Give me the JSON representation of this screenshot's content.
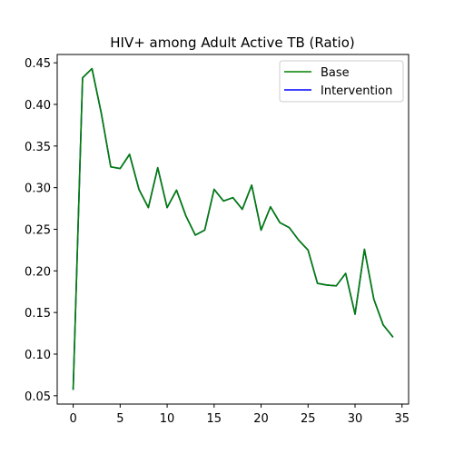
{
  "chart_data": {
    "type": "line",
    "title": "HIV+ among Adult Active TB (Ratio)",
    "xlabel": "",
    "ylabel": "",
    "xlim": [
      -1.7,
      35.7
    ],
    "ylim": [
      0.04,
      0.46
    ],
    "xticks": [
      0,
      5,
      10,
      15,
      20,
      25,
      30,
      35
    ],
    "yticks": [
      0.05,
      0.1,
      0.15,
      0.2,
      0.25,
      0.3,
      0.35,
      0.4,
      0.45
    ],
    "ytick_labels": [
      "0.05",
      "0.10",
      "0.15",
      "0.20",
      "0.25",
      "0.30",
      "0.35",
      "0.40",
      "0.45"
    ],
    "grid": false,
    "legend_position": "top-right",
    "x": [
      0,
      1,
      2,
      3,
      4,
      5,
      6,
      7,
      8,
      9,
      10,
      11,
      12,
      13,
      14,
      15,
      16,
      17,
      18,
      19,
      20,
      21,
      22,
      23,
      24,
      25,
      26,
      27,
      28,
      29,
      30,
      31,
      32,
      33,
      34
    ],
    "series": [
      {
        "name": "Base",
        "color": "#008000",
        "values": [
          0.058,
          0.432,
          0.443,
          0.389,
          0.325,
          0.323,
          0.34,
          0.298,
          0.276,
          0.324,
          0.276,
          0.297,
          0.266,
          0.243,
          0.249,
          0.298,
          0.284,
          0.288,
          0.274,
          0.303,
          0.249,
          0.277,
          0.258,
          0.252,
          0.237,
          0.225,
          0.185,
          0.183,
          0.182,
          0.197,
          0.148,
          0.226,
          0.166,
          0.135,
          0.121
        ]
      },
      {
        "name": "Intervention",
        "color": "#0000ff",
        "values": [
          0.058,
          0.432,
          0.443,
          0.389,
          0.325,
          0.323,
          0.34,
          0.298,
          0.276,
          0.324,
          0.276,
          0.297,
          0.266,
          0.243,
          0.249,
          0.298,
          0.284,
          0.288,
          0.274,
          0.303,
          0.249,
          0.277,
          0.258,
          0.252,
          0.237,
          0.225,
          0.185,
          0.183,
          0.182,
          0.197,
          0.148,
          0.226,
          0.166,
          0.135,
          0.121
        ]
      }
    ]
  }
}
